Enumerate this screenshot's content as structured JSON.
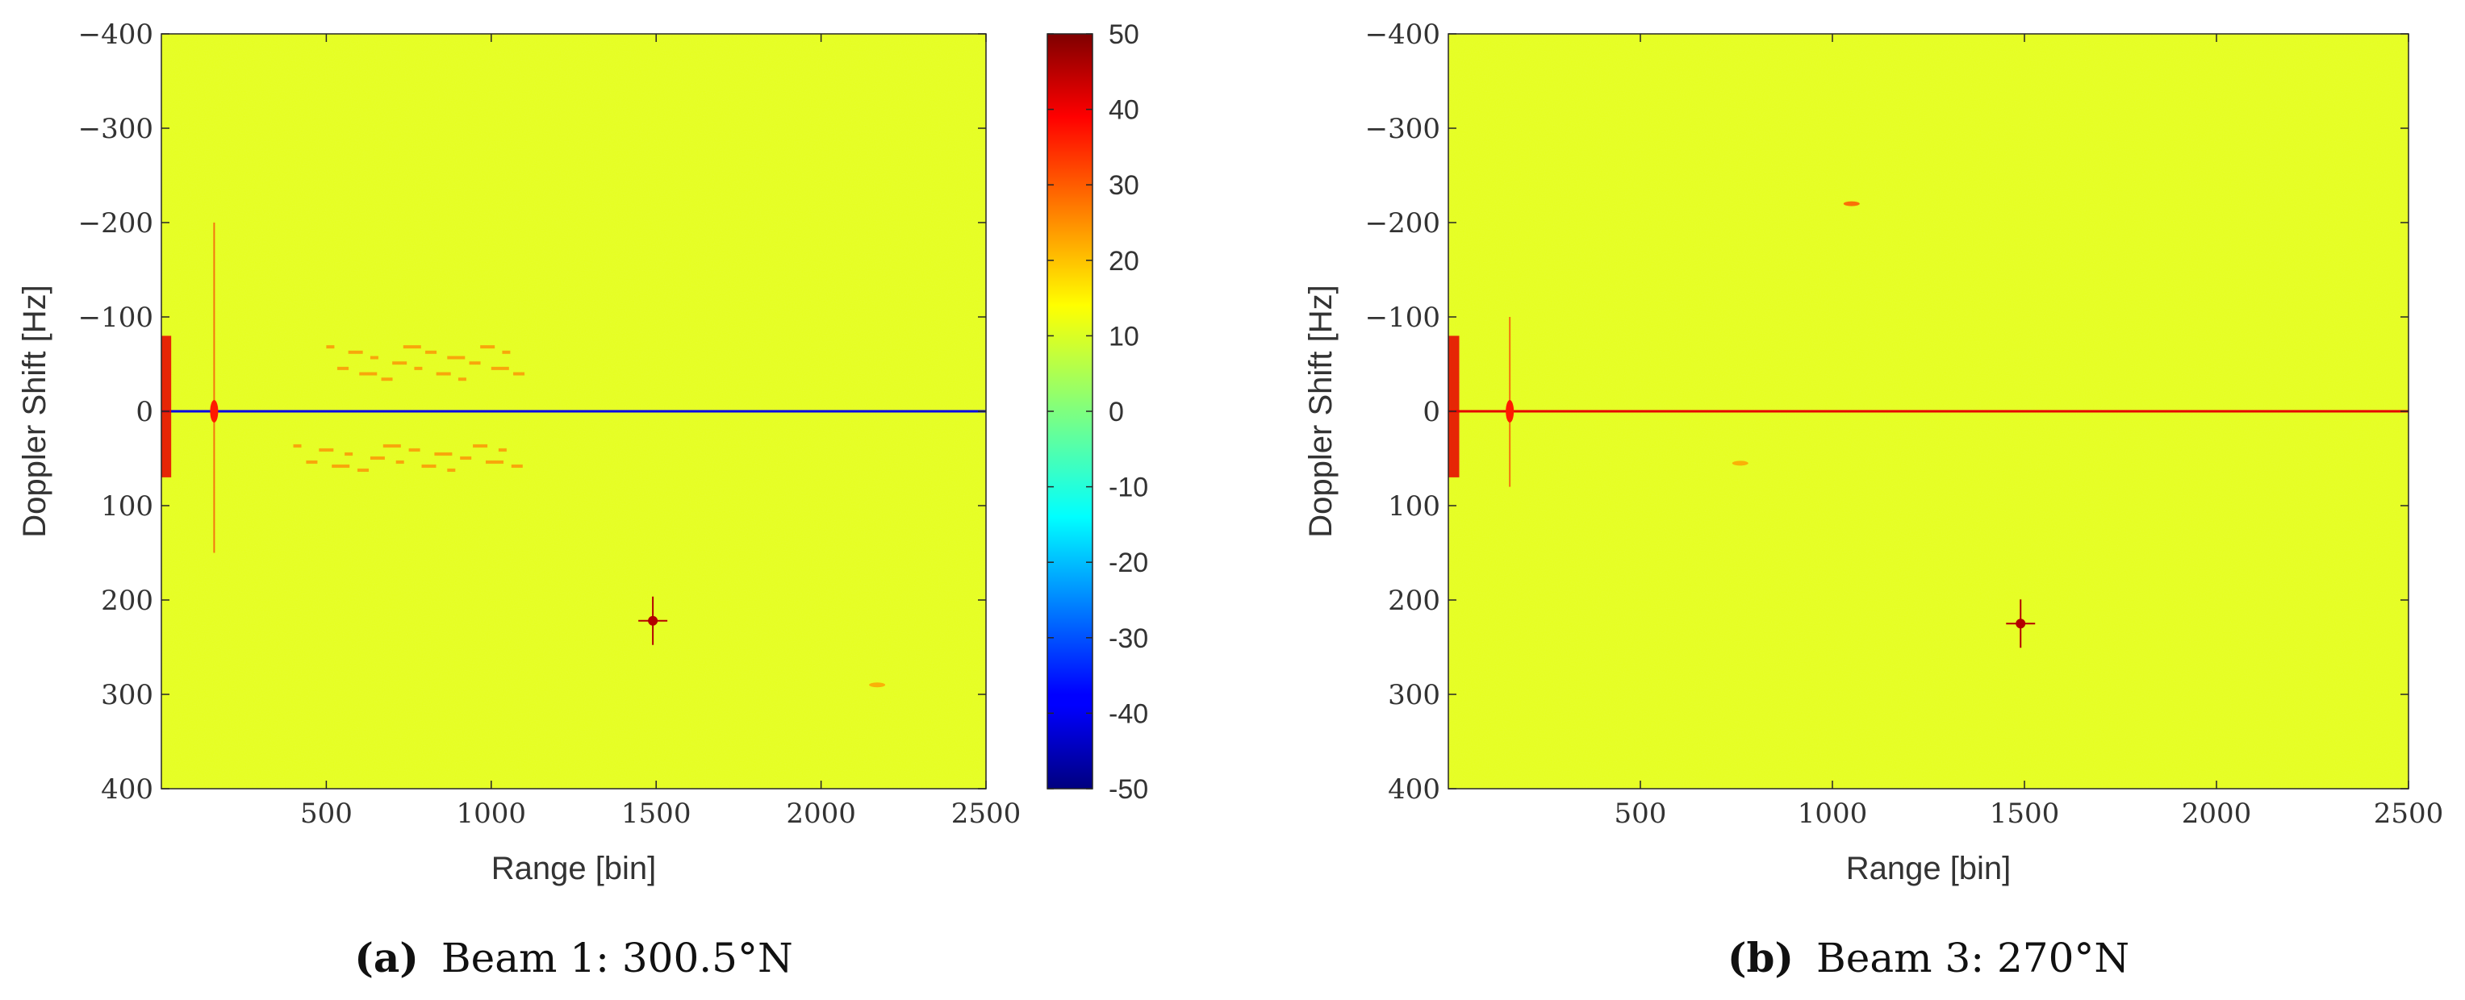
{
  "chart_data": [
    {
      "type": "heatmap",
      "panel": "a",
      "caption": {
        "label": "(a)",
        "text": "Beam 1: 300.5°N"
      },
      "xlabel": "Range [bin]",
      "ylabel": "Doppler Shift [Hz]",
      "xlim": [
        0,
        2500
      ],
      "ylim": [
        -400,
        400
      ],
      "y_reversed": true,
      "xticks": [
        500,
        1000,
        1500,
        2000,
        2500
      ],
      "yticks": [
        -400,
        -300,
        -200,
        -100,
        0,
        100,
        200,
        300,
        400
      ],
      "ytick_labels": [
        "−400",
        "−300",
        "−200",
        "−100",
        "0",
        "100",
        "200",
        "300",
        "400"
      ],
      "background_level": 10,
      "colormap": "jet",
      "clim": [
        -50,
        50
      ],
      "colorbar": {
        "ticks": [
          50,
          40,
          30,
          20,
          10,
          0,
          -10,
          -20,
          -30,
          -40,
          -50
        ],
        "tick_labels": [
          "50",
          "40",
          "30",
          "20",
          "10",
          "0",
          "-10",
          "-20",
          "-30",
          "-40",
          "-50"
        ]
      },
      "features": [
        {
          "kind": "zero_doppler_line",
          "x_range": [
            0,
            2500
          ],
          "y": 0,
          "level": -40
        },
        {
          "kind": "strong_target",
          "x": 1490,
          "y": 222,
          "level": 45
        },
        {
          "kind": "near_range_clutter",
          "x_range": [
            0,
            20
          ],
          "y_range": [
            -80,
            70
          ],
          "level": 40
        },
        {
          "kind": "clutter_streak",
          "x": 160,
          "y_range": [
            -200,
            150
          ],
          "level": 35
        },
        {
          "kind": "weak_blob_region",
          "x_range": [
            500,
            1100
          ],
          "y_range": [
            -70,
            -30
          ],
          "level": 25
        },
        {
          "kind": "weak_blob_region",
          "x_range": [
            400,
            1100
          ],
          "y_range": [
            35,
            65
          ],
          "level": 25
        },
        {
          "kind": "weak_target",
          "x": 2170,
          "y": 290,
          "level": 22
        }
      ]
    },
    {
      "type": "heatmap",
      "panel": "b",
      "caption": {
        "label": "(b)",
        "text": "Beam 3: 270°N"
      },
      "xlabel": "Range [bin]",
      "ylabel": "Doppler Shift [Hz]",
      "xlim": [
        0,
        2500
      ],
      "ylim": [
        -400,
        400
      ],
      "y_reversed": true,
      "xticks": [
        500,
        1000,
        1500,
        2000,
        2500
      ],
      "yticks": [
        -400,
        -300,
        -200,
        -100,
        0,
        100,
        200,
        300,
        400
      ],
      "ytick_labels": [
        "−400",
        "−300",
        "−200",
        "−100",
        "0",
        "100",
        "200",
        "300",
        "400"
      ],
      "background_level": 10,
      "colormap": "jet",
      "clim": [
        -50,
        50
      ],
      "features": [
        {
          "kind": "zero_doppler_line",
          "x_range": [
            0,
            2500
          ],
          "y": 0,
          "level": 40
        },
        {
          "kind": "strong_target",
          "x": 1490,
          "y": 225,
          "level": 45
        },
        {
          "kind": "weak_target",
          "x": 1050,
          "y": -220,
          "level": 30
        },
        {
          "kind": "near_range_clutter",
          "x_range": [
            0,
            20
          ],
          "y_range": [
            -80,
            70
          ],
          "level": 40
        },
        {
          "kind": "clutter_streak",
          "x": 160,
          "y_range": [
            -100,
            80
          ],
          "level": 35
        },
        {
          "kind": "weak_target",
          "x": 760,
          "y": 55,
          "level": 22
        }
      ]
    }
  ]
}
